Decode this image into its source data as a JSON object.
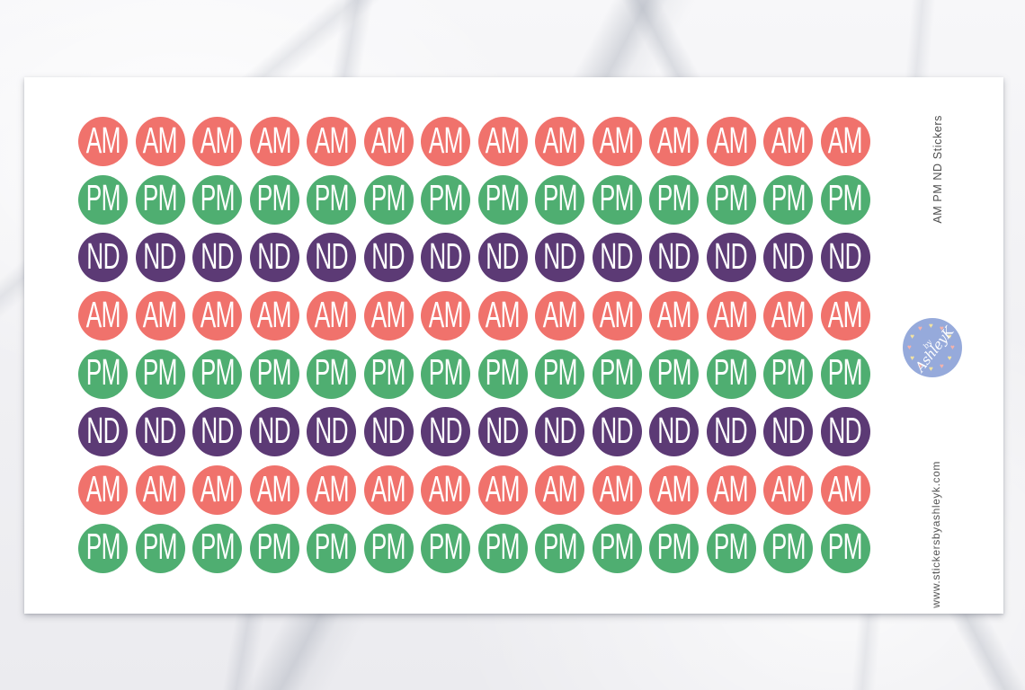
{
  "sheet": {
    "side_title": "AM PM ND Stickers",
    "website": "www.stickersbyashleyk.com",
    "side_text_color": "#4E4E4E",
    "logo": {
      "prefix": "by",
      "name": "AshleyK",
      "circle_color": "#96AADB",
      "script_color": "#FFFFFF",
      "heart_count": 12,
      "heart_colors": [
        "#F3E3A0",
        "#F4B2AB"
      ]
    },
    "grid": {
      "columns": 14,
      "sticker_text_color": "#FFFFFF",
      "rows": [
        {
          "label": "AM",
          "color": "#F0726C"
        },
        {
          "label": "PM",
          "color": "#4FAE71"
        },
        {
          "label": "ND",
          "color": "#5C3A75"
        },
        {
          "label": "AM",
          "color": "#F0726C"
        },
        {
          "label": "PM",
          "color": "#4FAE71"
        },
        {
          "label": "ND",
          "color": "#5C3A75"
        },
        {
          "label": "AM",
          "color": "#F0726C"
        },
        {
          "label": "PM",
          "color": "#4FAE71"
        }
      ]
    }
  }
}
